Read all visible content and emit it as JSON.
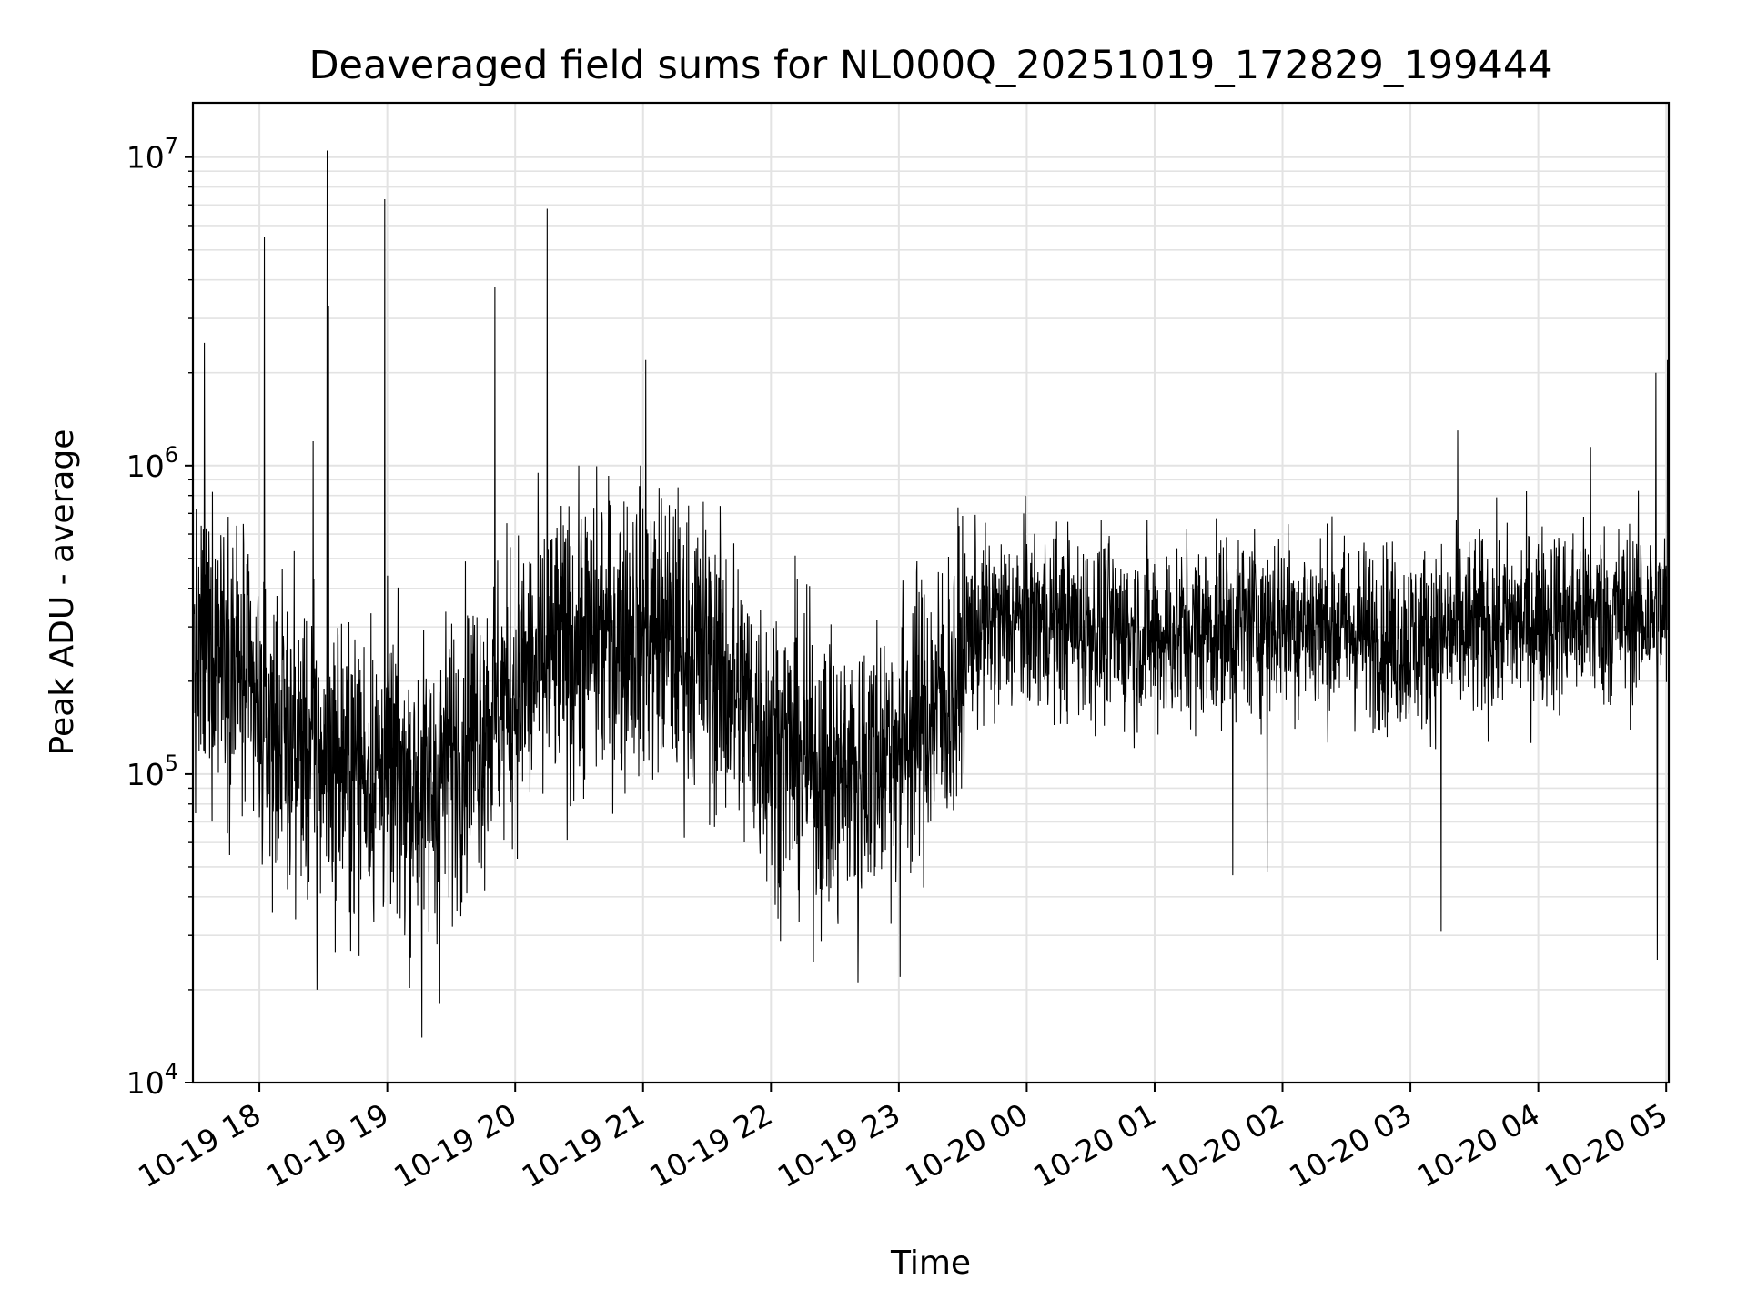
{
  "chart_data": {
    "type": "line",
    "title": "Deaveraged field sums for NL000Q_20251019_172829_199444",
    "xlabel": "Time",
    "ylabel": "Peak ADU - average",
    "yscale": "log",
    "ylim": [
      10000,
      15000000
    ],
    "xlim_hours_from_1019_1800": [
      -0.52,
      11.02
    ],
    "grid": true,
    "line_color": "#000000",
    "x_ticks": [
      {
        "label": "10-19 18",
        "hour": 0
      },
      {
        "label": "10-19 19",
        "hour": 1
      },
      {
        "label": "10-19 20",
        "hour": 2
      },
      {
        "label": "10-19 21",
        "hour": 3
      },
      {
        "label": "10-19 22",
        "hour": 4
      },
      {
        "label": "10-19 23",
        "hour": 5
      },
      {
        "label": "10-20 00",
        "hour": 6
      },
      {
        "label": "10-20 01",
        "hour": 7
      },
      {
        "label": "10-20 02",
        "hour": 8
      },
      {
        "label": "10-20 03",
        "hour": 9
      },
      {
        "label": "10-20 04",
        "hour": 10
      },
      {
        "label": "10-20 05",
        "hour": 11
      }
    ],
    "y_ticks": [
      {
        "base": "10",
        "exp": "4",
        "value": 10000
      },
      {
        "base": "10",
        "exp": "5",
        "value": 100000
      },
      {
        "base": "10",
        "exp": "6",
        "value": 1000000
      },
      {
        "base": "10",
        "exp": "7",
        "value": 10000000
      }
    ],
    "trend": [
      {
        "hour": -0.5,
        "value": 230000
      },
      {
        "hour": -0.3,
        "value": 300000
      },
      {
        "hour": 0.0,
        "value": 150000
      },
      {
        "hour": 0.5,
        "value": 110000
      },
      {
        "hour": 1.0,
        "value": 100000
      },
      {
        "hour": 1.3,
        "value": 85000
      },
      {
        "hour": 1.6,
        "value": 130000
      },
      {
        "hour": 2.0,
        "value": 190000
      },
      {
        "hour": 2.5,
        "value": 270000
      },
      {
        "hour": 3.0,
        "value": 300000
      },
      {
        "hour": 3.5,
        "value": 240000
      },
      {
        "hour": 4.0,
        "value": 130000
      },
      {
        "hour": 4.5,
        "value": 95000
      },
      {
        "hour": 5.0,
        "value": 130000
      },
      {
        "hour": 5.45,
        "value": 190000
      },
      {
        "hour": 5.55,
        "value": 290000
      },
      {
        "hour": 6.0,
        "value": 320000
      },
      {
        "hour": 7.0,
        "value": 280000
      },
      {
        "hour": 8.0,
        "value": 320000
      },
      {
        "hour": 9.0,
        "value": 270000
      },
      {
        "hour": 10.0,
        "value": 320000
      },
      {
        "hour": 11.0,
        "value": 330000
      }
    ],
    "spikes": [
      {
        "hour": -0.43,
        "value": 2500000
      },
      {
        "hour": 0.04,
        "value": 5500000
      },
      {
        "hour": 0.42,
        "value": 1200000
      },
      {
        "hour": 0.53,
        "value": 10500000
      },
      {
        "hour": 0.54,
        "value": 3300000
      },
      {
        "hour": 0.98,
        "value": 7300000
      },
      {
        "hour": 1.84,
        "value": 3800000
      },
      {
        "hour": 2.25,
        "value": 6800000
      },
      {
        "hour": 3.02,
        "value": 2200000
      },
      {
        "hour": 9.37,
        "value": 1300000
      },
      {
        "hour": 10.41,
        "value": 1150000
      },
      {
        "hour": 10.92,
        "value": 2000000
      },
      {
        "hour": 11.02,
        "value": 2200000
      }
    ],
    "dips": [
      {
        "hour": 1.27,
        "value": 14000
      },
      {
        "hour": 1.41,
        "value": 18000
      },
      {
        "hour": 0.45,
        "value": 20000
      },
      {
        "hour": 4.68,
        "value": 21000
      },
      {
        "hour": 5.01,
        "value": 22000
      },
      {
        "hour": 9.24,
        "value": 31000
      },
      {
        "hour": 10.93,
        "value": 25000
      },
      {
        "hour": 7.61,
        "value": 47000
      },
      {
        "hour": 7.88,
        "value": 48000
      }
    ]
  }
}
